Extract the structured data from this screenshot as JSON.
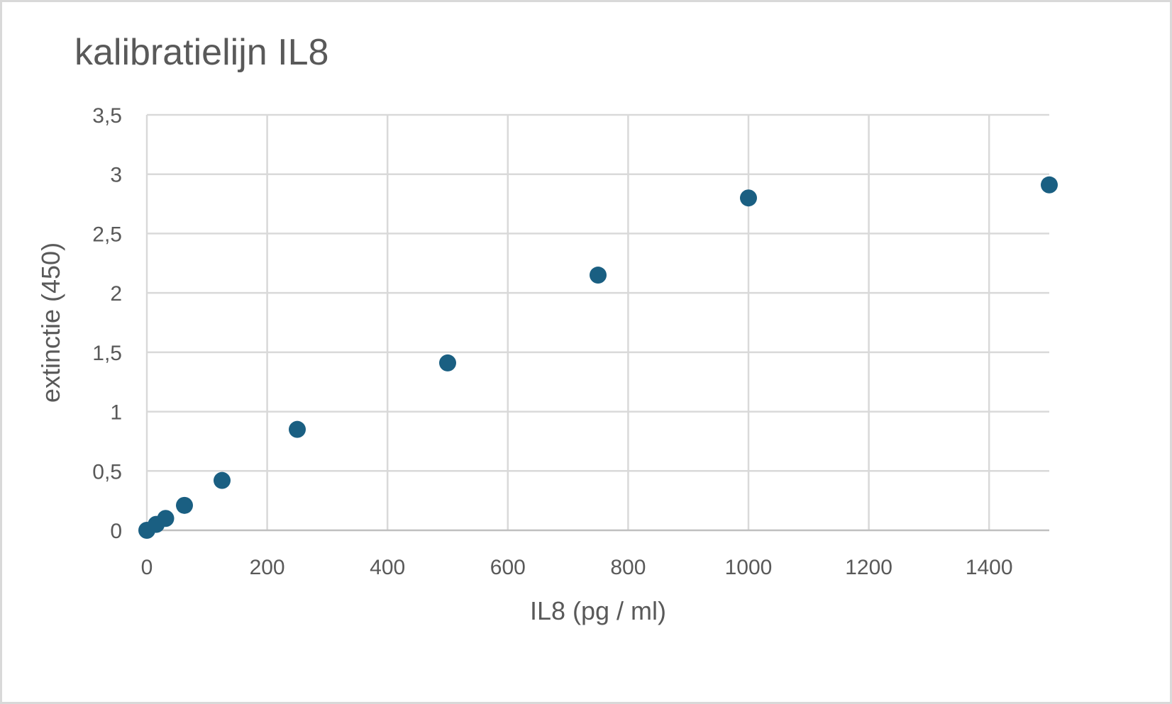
{
  "chart_data": {
    "type": "scatter",
    "title": "kalibratielijn IL8",
    "xlabel": "IL8 (pg / ml)",
    "ylabel": "extinctie (450)",
    "xlim": [
      0,
      1500
    ],
    "ylim": [
      0,
      3.5
    ],
    "x_ticks": [
      0,
      200,
      400,
      600,
      800,
      1000,
      1200,
      1400
    ],
    "x_tick_labels": [
      "0",
      "200",
      "400",
      "600",
      "800",
      "1000",
      "1200",
      "1400"
    ],
    "y_ticks": [
      0,
      0.5,
      1,
      1.5,
      2,
      2.5,
      3,
      3.5
    ],
    "y_tick_labels": [
      "0",
      "0,5",
      "1",
      "1,5",
      "2",
      "2,5",
      "3",
      "3,5"
    ],
    "grid": true,
    "legend": "none",
    "marker_color": "#1a5f82",
    "series": [
      {
        "x": [
          0,
          15.6,
          31.25,
          62.5,
          125,
          250,
          500,
          750,
          1000,
          1500
        ],
        "y": [
          0.0,
          0.05,
          0.1,
          0.21,
          0.42,
          0.85,
          1.41,
          2.15,
          2.8,
          2.91
        ]
      }
    ]
  }
}
